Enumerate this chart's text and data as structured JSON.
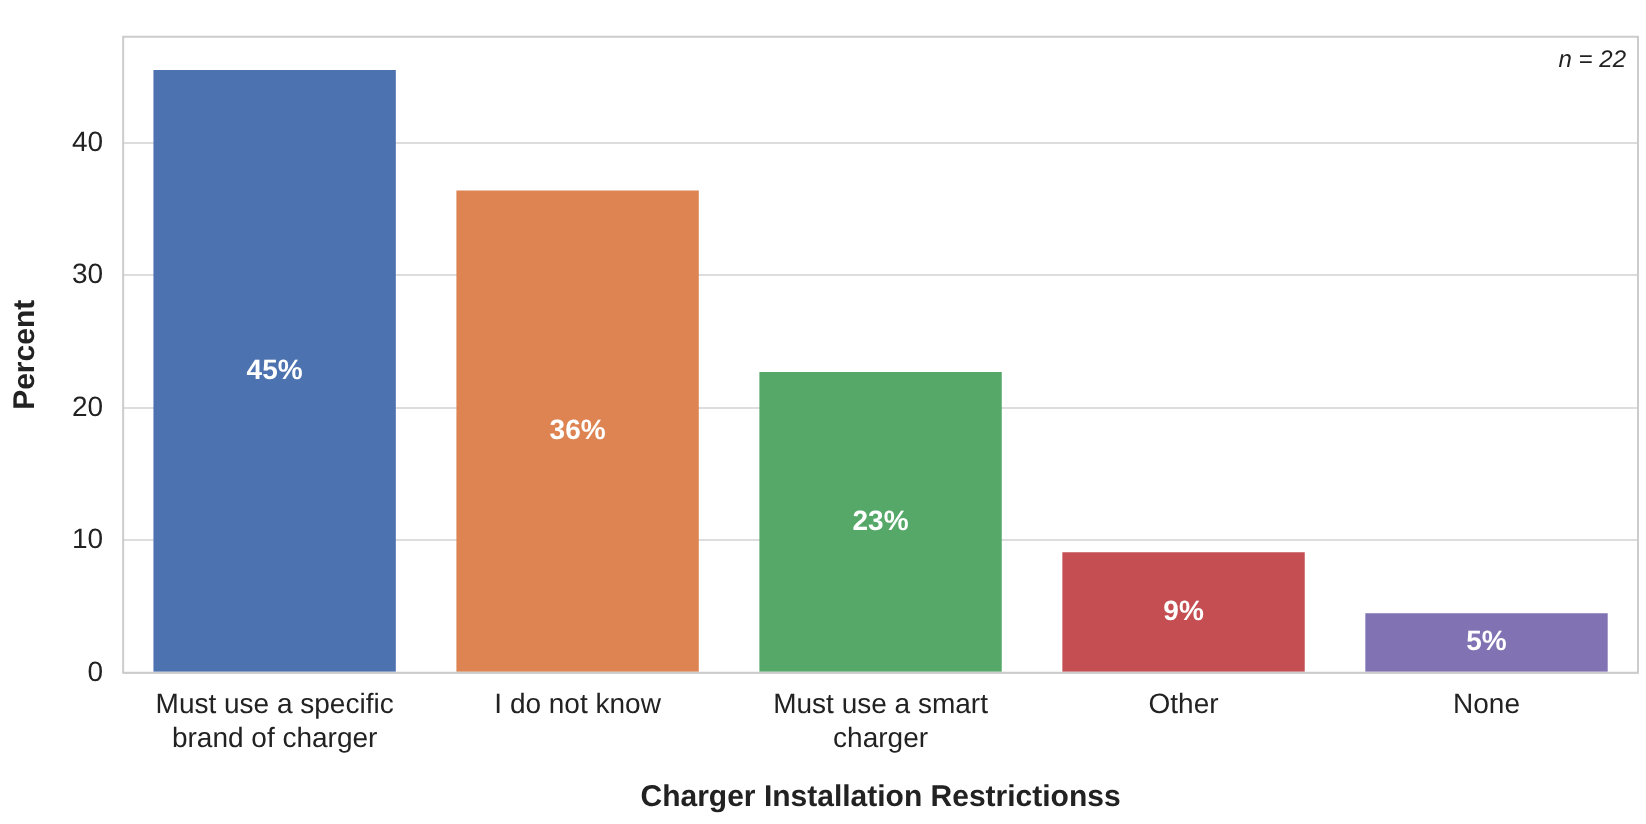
{
  "chart_data": {
    "type": "bar",
    "xlabel": "Charger Installation Restrictionss",
    "ylabel": "Percent",
    "categories": [
      "Must use a specific brand of charger",
      "I do not know",
      "Must use a smart charger",
      "Other",
      "None"
    ],
    "values": [
      45.5,
      36.4,
      22.7,
      9.1,
      4.5
    ],
    "colors": [
      "#4c72b0",
      "#dd8452",
      "#55a868",
      "#c44e52",
      "#8172b3"
    ],
    "value_labels": [
      "45%",
      "36%",
      "23%",
      "9%",
      "5%"
    ],
    "ylim": [
      0,
      48
    ],
    "yticks": [
      0,
      10,
      20,
      30,
      40
    ],
    "grid": "y",
    "annotations": [
      "n = 22"
    ]
  }
}
